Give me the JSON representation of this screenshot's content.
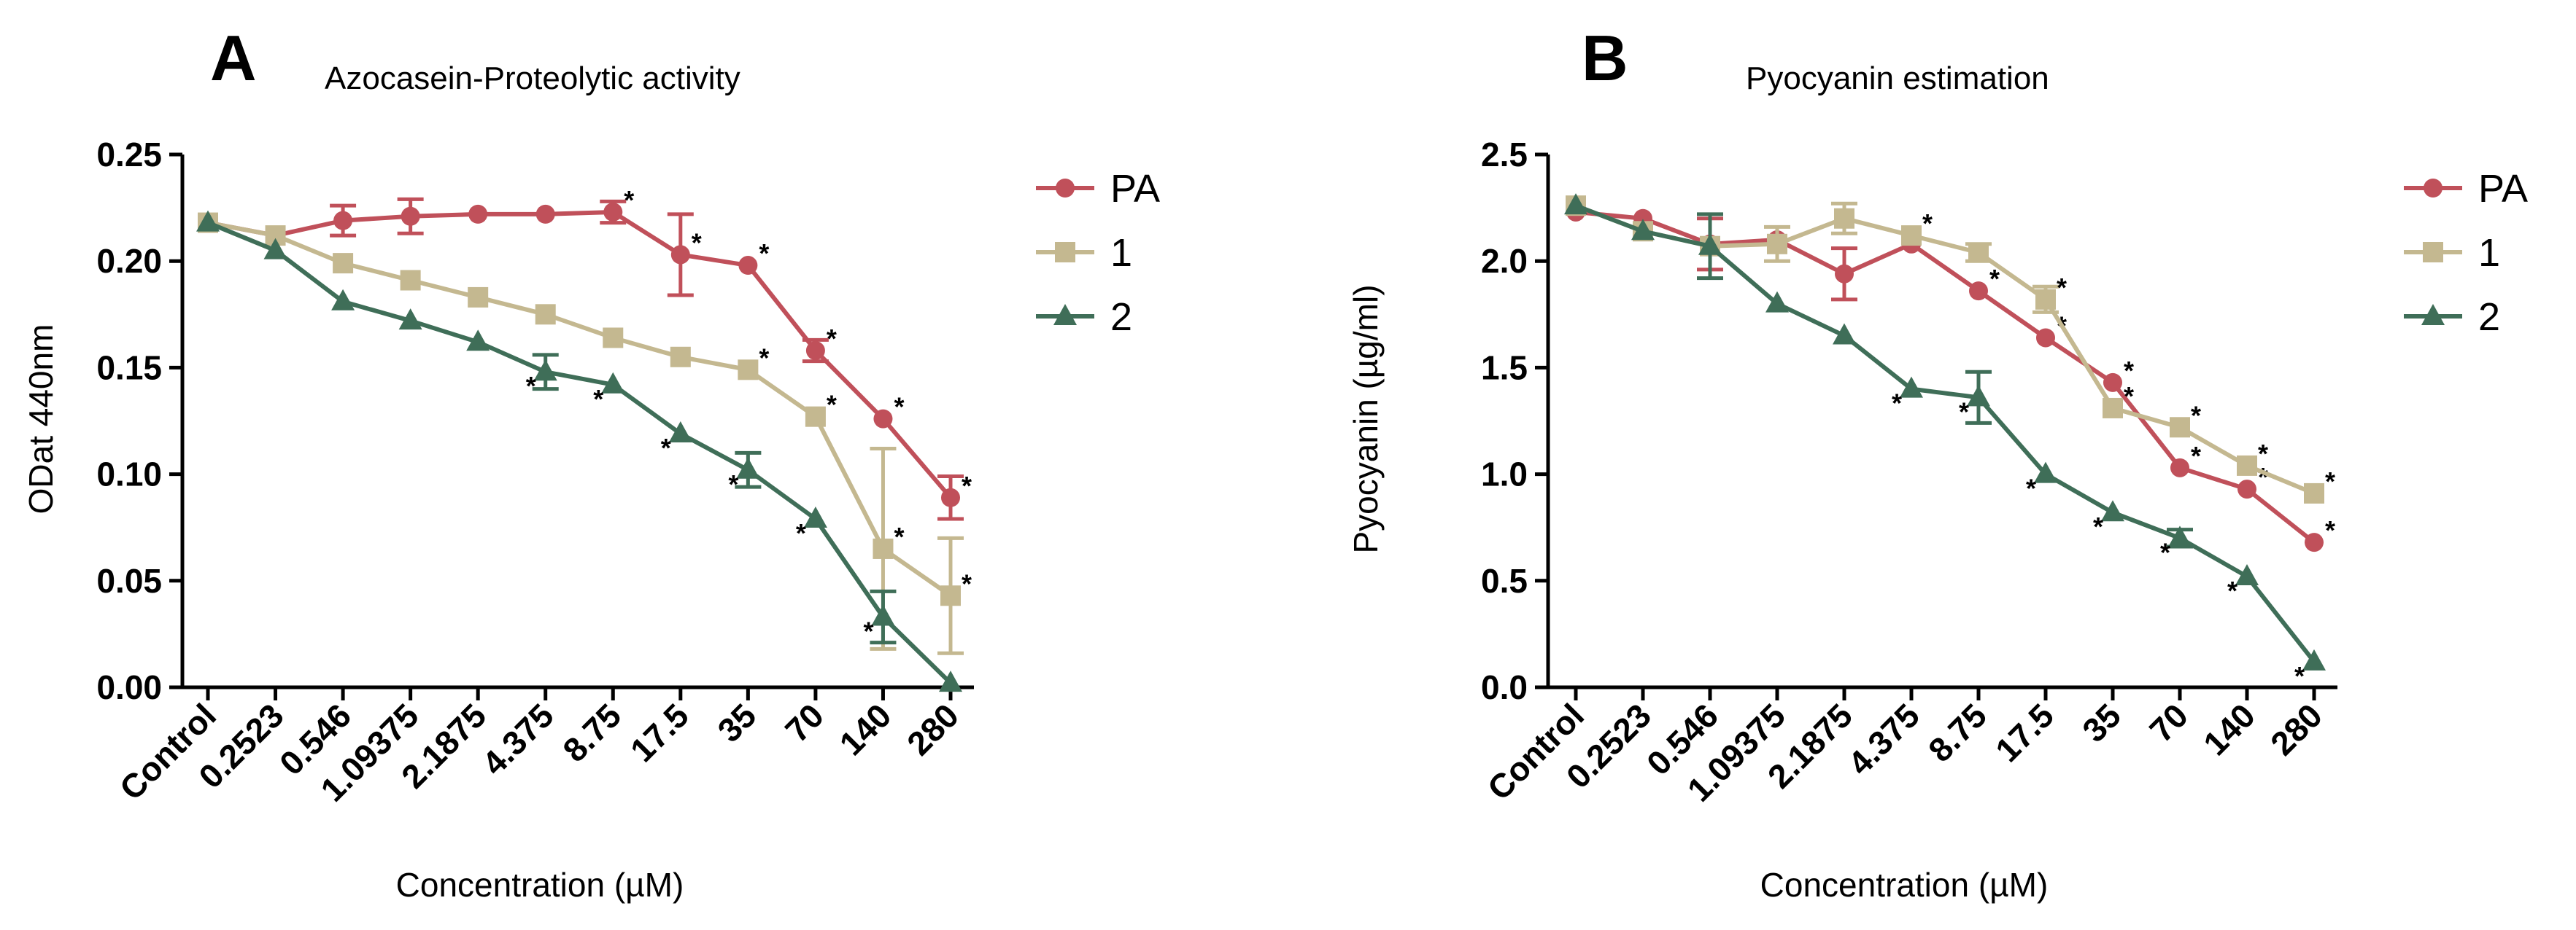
{
  "colors": {
    "PA": "#c0505a",
    "1": "#c4b890",
    "2": "#3f6e58"
  },
  "chart_data": [
    {
      "panel": "A",
      "type": "line",
      "title": "Azocasein-Proteolytic activity",
      "xlabel": "Concentration (µM)",
      "ylabel": "ODat 440nm",
      "categories": [
        "Control",
        "0.2523",
        "0.546",
        "1.09375",
        "2.1875",
        "4.375",
        "8.75",
        "17.5",
        "35",
        "70",
        "140",
        "280"
      ],
      "ylim": [
        0,
        0.25
      ],
      "yticks": [
        0.0,
        0.05,
        0.1,
        0.15,
        0.2,
        0.25
      ],
      "ytick_labels": [
        "0.00",
        "0.05",
        "0.10",
        "0.15",
        "0.20",
        "0.25"
      ],
      "legend": "right",
      "series": [
        {
          "name": "PA",
          "marker": "circle",
          "values": [
            0.218,
            0.212,
            0.219,
            0.221,
            0.222,
            0.222,
            0.223,
            0.203,
            0.198,
            0.158,
            0.126,
            0.089
          ],
          "errors": [
            0,
            0,
            0.007,
            0.008,
            0,
            0,
            0.005,
            0.019,
            0,
            0.005,
            0,
            0.01
          ],
          "significant": [
            false,
            false,
            false,
            false,
            false,
            false,
            true,
            true,
            true,
            true,
            true,
            true
          ]
        },
        {
          "name": "1",
          "marker": "square",
          "values": [
            0.218,
            0.212,
            0.199,
            0.191,
            0.183,
            0.175,
            0.164,
            0.155,
            0.149,
            0.127,
            0.065,
            0.043
          ],
          "errors": [
            0,
            0,
            0,
            0,
            0,
            0,
            0,
            0,
            0,
            0,
            0.047,
            0.027
          ],
          "significant": [
            false,
            false,
            false,
            false,
            false,
            false,
            false,
            false,
            true,
            true,
            true,
            true
          ]
        },
        {
          "name": "2",
          "marker": "triangle",
          "values": [
            0.218,
            0.205,
            0.181,
            0.172,
            0.162,
            0.148,
            0.142,
            0.119,
            0.102,
            0.079,
            0.033,
            0.002
          ],
          "errors": [
            0,
            0,
            0,
            0,
            0,
            0.008,
            0,
            0,
            0.008,
            0,
            0.012,
            0
          ],
          "significant": [
            false,
            false,
            false,
            false,
            false,
            true,
            true,
            true,
            true,
            true,
            true,
            false
          ]
        }
      ]
    },
    {
      "panel": "B",
      "type": "line",
      "title": "Pyocyanin estimation",
      "xlabel": "Concentration (µM)",
      "ylabel": "Pyocyanin (µg/ml)",
      "categories": [
        "Control",
        "0.2523",
        "0.546",
        "1.09375",
        "2.1875",
        "4.375",
        "8.75",
        "17.5",
        "35",
        "70",
        "140",
        "280"
      ],
      "ylim": [
        0,
        2.5
      ],
      "yticks": [
        0.0,
        0.5,
        1.0,
        1.5,
        2.0,
        2.5
      ],
      "ytick_labels": [
        "0.0",
        "0.5",
        "1.0",
        "1.5",
        "2.0",
        "2.5"
      ],
      "legend": "right",
      "series": [
        {
          "name": "PA",
          "marker": "circle",
          "values": [
            2.23,
            2.2,
            2.08,
            2.1,
            1.94,
            2.08,
            1.86,
            1.64,
            1.43,
            1.03,
            0.93,
            0.68
          ],
          "errors": [
            0,
            0,
            0.12,
            0,
            0.12,
            0,
            0,
            0,
            0,
            0,
            0,
            0
          ],
          "significant": [
            false,
            false,
            false,
            false,
            false,
            false,
            true,
            true,
            true,
            true,
            true,
            true
          ]
        },
        {
          "name": "1",
          "marker": "square",
          "values": [
            2.26,
            2.14,
            2.07,
            2.08,
            2.2,
            2.12,
            2.04,
            1.82,
            1.31,
            1.22,
            1.04,
            0.91
          ],
          "errors": [
            0,
            0,
            0,
            0.08,
            0.07,
            0,
            0.04,
            0.06,
            0,
            0,
            0,
            0
          ],
          "significant": [
            false,
            false,
            false,
            false,
            false,
            true,
            false,
            true,
            true,
            true,
            true,
            true
          ]
        },
        {
          "name": "2",
          "marker": "triangle",
          "values": [
            2.26,
            2.14,
            2.07,
            1.8,
            1.65,
            1.4,
            1.36,
            1.0,
            0.82,
            0.7,
            0.52,
            0.12
          ],
          "errors": [
            0,
            0,
            0.15,
            0,
            0,
            0,
            0.12,
            0,
            0,
            0.04,
            0,
            0
          ],
          "significant": [
            false,
            false,
            false,
            false,
            false,
            true,
            true,
            true,
            true,
            true,
            true,
            true
          ]
        }
      ]
    }
  ]
}
